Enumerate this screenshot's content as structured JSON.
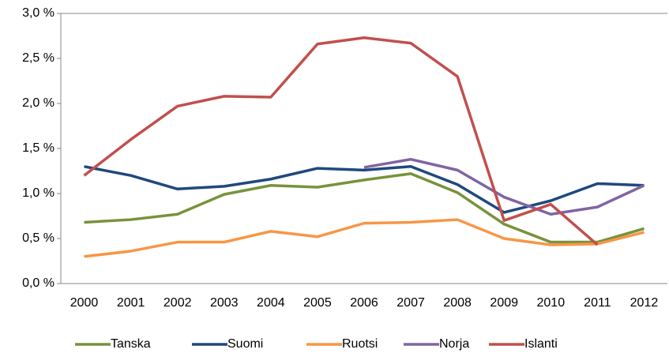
{
  "chart_data": {
    "type": "line",
    "categories": [
      "2000",
      "2001",
      "2002",
      "2003",
      "2004",
      "2005",
      "2006",
      "2007",
      "2008",
      "2009",
      "2010",
      "2011",
      "2012"
    ],
    "series": [
      {
        "name": "Tanska",
        "color": "#77933c",
        "values": [
          0.68,
          0.71,
          0.77,
          0.99,
          1.09,
          1.07,
          1.15,
          1.22,
          1.01,
          0.66,
          0.46,
          0.46,
          0.61
        ]
      },
      {
        "name": "Suomi",
        "color": "#1f497d",
        "values": [
          1.3,
          1.2,
          1.05,
          1.08,
          1.16,
          1.28,
          1.26,
          1.3,
          1.1,
          0.79,
          0.92,
          1.11,
          1.09
        ]
      },
      {
        "name": "Ruotsi",
        "color": "#f79646",
        "values": [
          0.3,
          0.36,
          0.46,
          0.46,
          0.58,
          0.52,
          0.67,
          0.68,
          0.71,
          0.5,
          0.43,
          0.44,
          0.57
        ]
      },
      {
        "name": "Norja",
        "color": "#8064a2",
        "values": [
          null,
          null,
          null,
          null,
          null,
          null,
          1.29,
          1.38,
          1.26,
          0.96,
          0.77,
          0.85,
          1.09
        ]
      },
      {
        "name": "Islanti",
        "color": "#c0504d",
        "values": [
          1.2,
          1.6,
          1.97,
          2.08,
          2.07,
          2.66,
          2.73,
          2.67,
          2.3,
          0.7,
          0.88,
          0.43,
          null
        ]
      }
    ],
    "ylim": [
      0,
      3
    ],
    "yticks": [
      {
        "value": 0,
        "label": "0,0 %"
      },
      {
        "value": 0.5,
        "label": "0,5 %"
      },
      {
        "value": 1,
        "label": "1,0 %"
      },
      {
        "value": 1.5,
        "label": "1,5 %"
      },
      {
        "value": 2,
        "label": "2,0 %"
      },
      {
        "value": 2.5,
        "label": "2,5 %"
      },
      {
        "value": 3,
        "label": "3,0 %"
      }
    ],
    "grid": false,
    "legend": "bottom"
  }
}
